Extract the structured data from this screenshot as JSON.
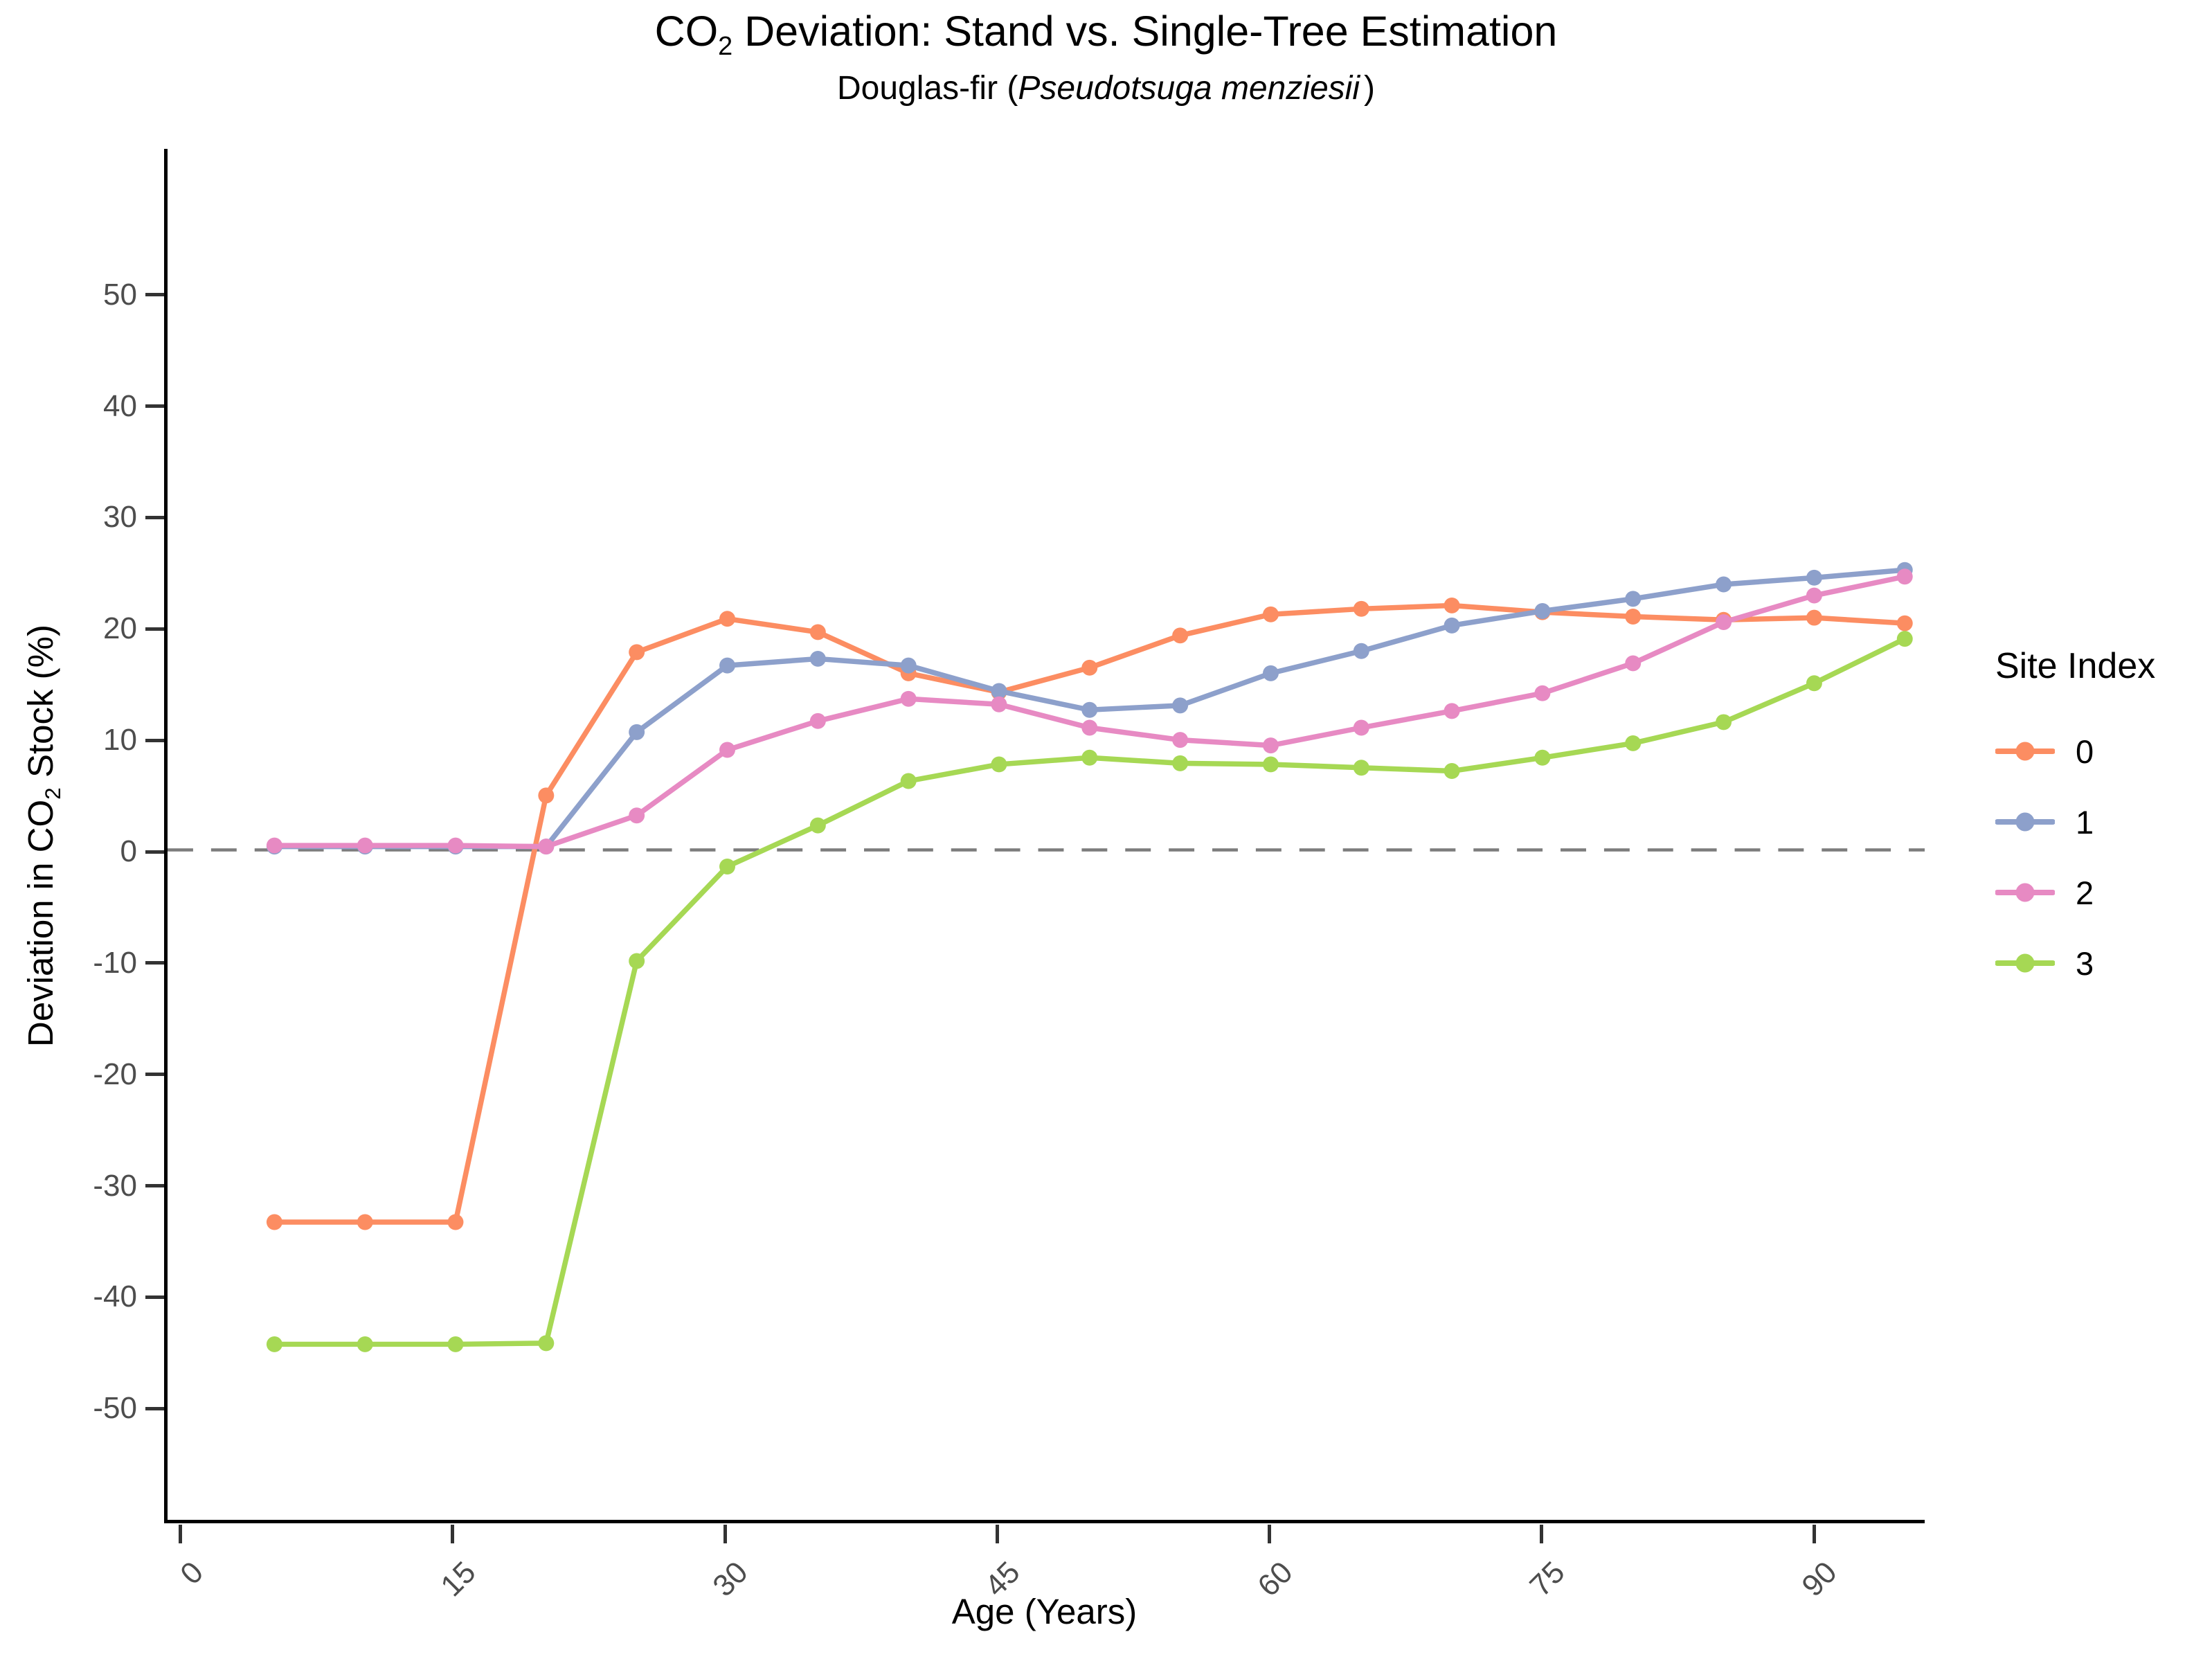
{
  "header": {
    "title_prefix": "CO",
    "title_sub": "2",
    "title_rest": " Deviation: Stand vs. Single-Tree Estimation",
    "subtitle_prefix": "Douglas-fir (",
    "subtitle_species": "Pseudotsuga menziesii",
    "subtitle_suffix": ")"
  },
  "axes": {
    "x_label": "Age (Years)",
    "y_label_prefix": "Deviation in CO",
    "y_label_sub": "2",
    "y_label_suffix": " Stock (%)"
  },
  "legend": {
    "title": "Site Index",
    "items": [
      {
        "label": "0",
        "color": "#FC8D62"
      },
      {
        "label": "1",
        "color": "#8DA0CB"
      },
      {
        "label": "2",
        "color": "#E78AC3"
      },
      {
        "label": "3",
        "color": "#A6D854"
      }
    ]
  },
  "colors": {
    "series_0": "#FC8D62",
    "series_1": "#8DA0CB",
    "series_2": "#E78AC3",
    "series_3": "#A6D854",
    "zero_line": "#7C7C7C",
    "tick_mark": "#333333",
    "tick_label": "#4D4D4D",
    "axis_line": "#000000"
  },
  "chart_data": {
    "type": "line",
    "title": "CO2 Deviation: Stand vs. Single-Tree Estimation",
    "subtitle": "Douglas-fir (Pseudotsuga menziesii)",
    "xlabel": "Age (Years)",
    "ylabel": "Deviation in CO2 Stock (%)",
    "legend_title": "Site Index",
    "legend_position": "right",
    "grid": false,
    "x": [
      5,
      10,
      15,
      20,
      25,
      30,
      35,
      40,
      45,
      50,
      55,
      60,
      65,
      70,
      75,
      80,
      85,
      90,
      95
    ],
    "series": [
      {
        "name": "0",
        "color": "#FC8D62",
        "values": [
          -33.5,
          -33.5,
          -33.5,
          4.9,
          17.8,
          20.8,
          19.6,
          15.9,
          14.2,
          16.4,
          19.3,
          21.2,
          21.7,
          22.0,
          21.4,
          21.0,
          20.7,
          20.9,
          20.4
        ]
      },
      {
        "name": "1",
        "color": "#8DA0CB",
        "values": [
          0.3,
          0.3,
          0.3,
          0.3,
          10.6,
          16.6,
          17.2,
          16.6,
          14.3,
          12.6,
          13.0,
          15.9,
          17.9,
          20.2,
          21.5,
          22.6,
          23.9,
          24.5,
          25.2
        ]
      },
      {
        "name": "2",
        "color": "#E78AC3",
        "values": [
          0.4,
          0.4,
          0.4,
          0.3,
          3.1,
          9.0,
          11.6,
          13.6,
          13.1,
          11.0,
          9.9,
          9.4,
          11.0,
          12.5,
          14.1,
          16.8,
          20.5,
          22.9,
          24.6
        ]
      },
      {
        "name": "3",
        "color": "#A6D854",
        "values": [
          -44.5,
          -44.5,
          -44.5,
          -44.4,
          -10.0,
          -1.5,
          2.2,
          6.2,
          7.7,
          8.3,
          7.8,
          7.7,
          7.4,
          7.1,
          8.3,
          9.6,
          11.5,
          15.0,
          19.0
        ]
      }
    ],
    "xlim": [
      -0.9,
      96.1
    ],
    "ylim": [
      -60.3,
      63.1
    ],
    "x_ticks": [
      0,
      15,
      30,
      45,
      60,
      75,
      90
    ],
    "y_ticks": [
      50,
      40,
      30,
      20,
      10,
      0,
      -10,
      -20,
      -30,
      -40,
      -50
    ],
    "zero_line": {
      "y": 0,
      "style": "dashed",
      "color": "#7C7C7C"
    }
  }
}
